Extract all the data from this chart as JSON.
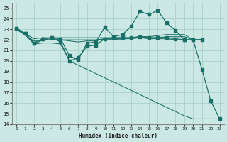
{
  "bg_color": "#cce8e4",
  "grid_color": "#aacfcb",
  "line_color": "#1a7068",
  "xlabel": "Humidex (Indice chaleur)",
  "xlim": [
    -0.5,
    23.5
  ],
  "ylim": [
    14,
    25.5
  ],
  "xticks": [
    0,
    1,
    2,
    3,
    4,
    5,
    6,
    7,
    8,
    9,
    10,
    11,
    12,
    13,
    14,
    15,
    16,
    17,
    18,
    19,
    20,
    21,
    22,
    23
  ],
  "yticks": [
    14,
    15,
    16,
    17,
    18,
    19,
    20,
    21,
    22,
    23,
    24,
    25
  ],
  "series": [
    {
      "x": [
        0,
        2,
        3,
        4,
        5,
        6,
        7,
        8,
        9,
        10,
        11,
        12,
        13,
        14,
        15,
        16,
        17,
        18,
        19,
        20,
        21
      ],
      "y": [
        23.1,
        22.1,
        22.2,
        22.2,
        22.2,
        22.2,
        22.2,
        22.2,
        22.2,
        22.2,
        22.2,
        22.2,
        22.2,
        22.3,
        22.3,
        22.4,
        22.5,
        22.5,
        22.5,
        22.0,
        22.0
      ],
      "markers": false
    },
    {
      "x": [
        0,
        2,
        3,
        4,
        5,
        6,
        7,
        8,
        9,
        10,
        11,
        12,
        13,
        14,
        15,
        16,
        17,
        18,
        19,
        20,
        21
      ],
      "y": [
        23.0,
        21.9,
        22.0,
        22.0,
        22.0,
        22.0,
        22.0,
        22.0,
        22.0,
        22.1,
        22.1,
        22.1,
        22.1,
        22.2,
        22.2,
        22.2,
        22.3,
        22.3,
        22.3,
        22.0,
        22.0
      ],
      "markers": false
    },
    {
      "x": [
        0,
        1,
        2,
        3,
        4,
        5,
        6,
        7,
        8,
        9,
        10,
        11,
        12,
        13,
        14,
        15,
        16,
        17,
        18,
        19,
        20,
        21
      ],
      "y": [
        23.0,
        22.5,
        21.6,
        22.0,
        22.1,
        22.0,
        21.9,
        21.8,
        21.9,
        21.9,
        22.1,
        22.0,
        22.1,
        22.2,
        22.2,
        22.1,
        22.1,
        22.1,
        22.0,
        22.0,
        22.0,
        22.0
      ],
      "markers": false
    },
    {
      "x": [
        0,
        1,
        2,
        3,
        4,
        5,
        6,
        7,
        8,
        9,
        10,
        11,
        12,
        13,
        14,
        15,
        16,
        17,
        18,
        19,
        20,
        21
      ],
      "y": [
        23.1,
        22.6,
        21.7,
        22.1,
        22.2,
        21.8,
        20.0,
        20.3,
        21.4,
        21.5,
        22.1,
        22.2,
        22.2,
        22.2,
        22.3,
        22.2,
        22.2,
        22.2,
        22.1,
        22.0,
        22.0,
        22.0
      ],
      "markers": true
    },
    {
      "x": [
        0,
        1,
        2,
        3,
        4,
        5,
        6,
        7,
        8,
        9,
        10,
        11,
        12,
        13,
        14,
        15,
        16,
        17,
        18,
        19,
        20,
        21,
        22,
        23
      ],
      "y": [
        23.0,
        22.5,
        21.6,
        21.7,
        21.7,
        21.6,
        20.0,
        19.6,
        19.2,
        18.8,
        18.4,
        18.0,
        17.6,
        17.2,
        16.8,
        16.4,
        16.0,
        15.6,
        15.2,
        14.8,
        14.5,
        14.5,
        14.5,
        14.5
      ],
      "markers": false
    },
    {
      "x": [
        0,
        1,
        2,
        3,
        4,
        5,
        6,
        7,
        8,
        9,
        10,
        11,
        12,
        13,
        14,
        15,
        16,
        17,
        18,
        19,
        20,
        21,
        22,
        23
      ],
      "y": [
        23.1,
        22.6,
        21.7,
        22.1,
        22.2,
        22.1,
        20.5,
        20.1,
        21.7,
        21.8,
        23.2,
        22.3,
        22.5,
        23.3,
        24.7,
        24.4,
        24.8,
        23.6,
        22.9,
        22.0,
        22.0,
        19.2,
        16.2,
        14.5
      ],
      "markers": true
    }
  ]
}
